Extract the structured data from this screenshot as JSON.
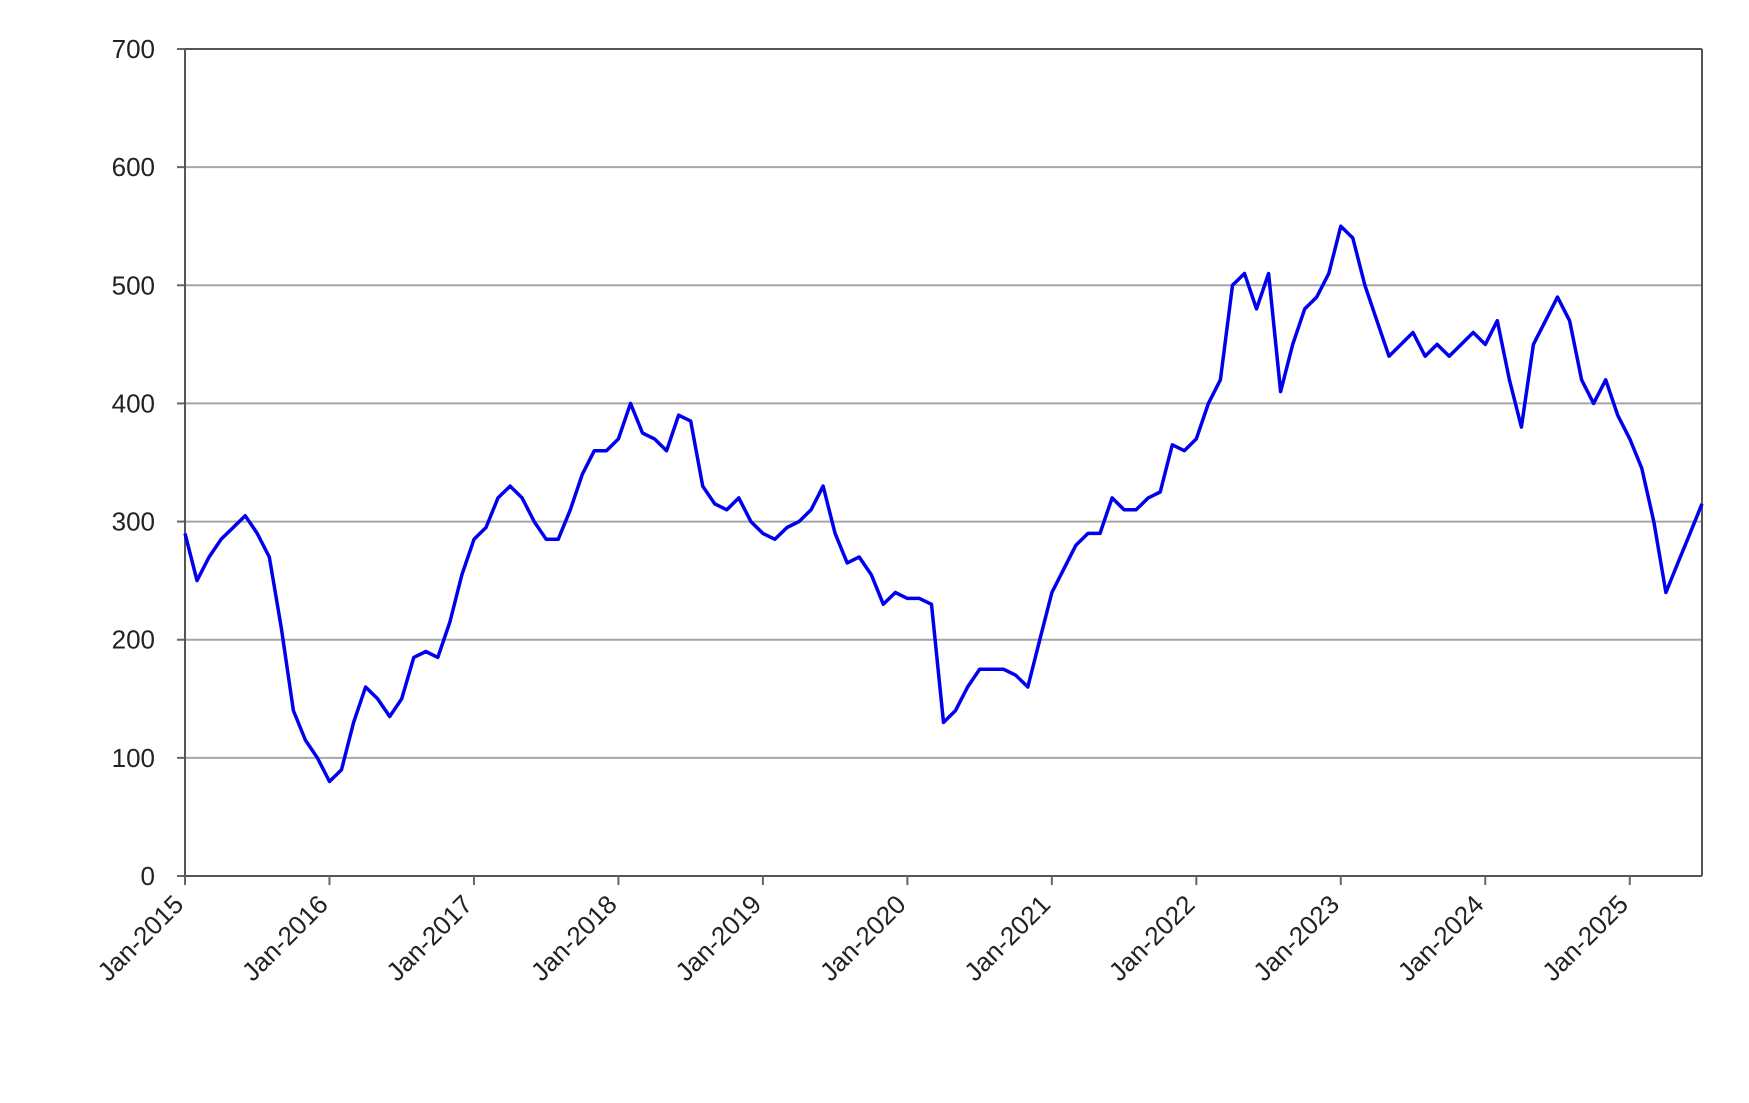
{
  "chart_data": {
    "type": "line",
    "x": [
      "2015-01",
      "2015-02",
      "2015-03",
      "2015-04",
      "2015-05",
      "2015-06",
      "2015-07",
      "2015-08",
      "2015-09",
      "2015-10",
      "2015-11",
      "2015-12",
      "2016-01",
      "2016-02",
      "2016-03",
      "2016-04",
      "2016-05",
      "2016-06",
      "2016-07",
      "2016-08",
      "2016-09",
      "2016-10",
      "2016-11",
      "2016-12",
      "2017-01",
      "2017-02",
      "2017-03",
      "2017-04",
      "2017-05",
      "2017-06",
      "2017-07",
      "2017-08",
      "2017-09",
      "2017-10",
      "2017-11",
      "2017-12",
      "2018-01",
      "2018-02",
      "2018-03",
      "2018-04",
      "2018-05",
      "2018-06",
      "2018-07",
      "2018-08",
      "2018-09",
      "2018-10",
      "2018-11",
      "2018-12",
      "2019-01",
      "2019-02",
      "2019-03",
      "2019-04",
      "2019-05",
      "2019-06",
      "2019-07",
      "2019-08",
      "2019-09",
      "2019-10",
      "2019-11",
      "2019-12",
      "2020-01",
      "2020-02",
      "2020-03",
      "2020-04",
      "2020-05",
      "2020-06",
      "2020-07",
      "2020-08",
      "2020-09",
      "2020-10",
      "2020-11",
      "2020-12",
      "2021-01",
      "2021-02",
      "2021-03",
      "2021-04",
      "2021-05",
      "2021-06",
      "2021-07",
      "2021-08",
      "2021-09",
      "2021-10",
      "2021-11",
      "2021-12",
      "2022-01",
      "2022-02",
      "2022-03",
      "2022-04",
      "2022-05",
      "2022-06",
      "2022-07",
      "2022-08",
      "2022-09",
      "2022-10",
      "2022-11",
      "2022-12",
      "2023-01",
      "2023-02",
      "2023-03",
      "2023-04",
      "2023-05",
      "2023-06",
      "2023-07",
      "2023-08",
      "2023-09",
      "2023-10",
      "2023-11",
      "2023-12",
      "2024-01",
      "2024-02",
      "2024-03",
      "2024-04",
      "2024-05",
      "2024-06",
      "2024-07",
      "2024-08",
      "2024-09",
      "2024-10",
      "2024-11",
      "2024-12",
      "2025-01",
      "2025-02",
      "2025-03",
      "2025-04",
      "2025-05",
      "2025-06",
      "2025-07"
    ],
    "series": [
      {
        "color": "#0000ee",
        "values": [
          290,
          250,
          270,
          285,
          295,
          305,
          290,
          270,
          210,
          140,
          115,
          100,
          80,
          90,
          130,
          160,
          150,
          135,
          150,
          185,
          190,
          185,
          215,
          255,
          285,
          295,
          320,
          330,
          320,
          300,
          285,
          285,
          310,
          340,
          360,
          360,
          370,
          400,
          375,
          370,
          360,
          390,
          385,
          330,
          315,
          310,
          320,
          300,
          290,
          285,
          295,
          300,
          310,
          330,
          290,
          265,
          270,
          255,
          230,
          240,
          235,
          235,
          230,
          130,
          140,
          160,
          175,
          175,
          175,
          170,
          160,
          200,
          240,
          260,
          280,
          290,
          290,
          320,
          310,
          310,
          320,
          325,
          365,
          360,
          370,
          400,
          420,
          500,
          510,
          480,
          510,
          410,
          450,
          480,
          490,
          510,
          550,
          540,
          500,
          470,
          440,
          450,
          460,
          440,
          450,
          440,
          450,
          460,
          450,
          470,
          420,
          380,
          450,
          470,
          490,
          470,
          420,
          400,
          420,
          390,
          370,
          345,
          300,
          240,
          265,
          290,
          315
        ]
      }
    ],
    "xlim": [
      "2015-01",
      "2025-07"
    ],
    "xticks": [
      {
        "value": "2015-01",
        "label": "Jan-2015"
      },
      {
        "value": "2016-01",
        "label": "Jan-2016"
      },
      {
        "value": "2017-01",
        "label": "Jan-2017"
      },
      {
        "value": "2018-01",
        "label": "Jan-2018"
      },
      {
        "value": "2019-01",
        "label": "Jan-2019"
      },
      {
        "value": "2020-01",
        "label": "Jan-2020"
      },
      {
        "value": "2021-01",
        "label": "Jan-2021"
      },
      {
        "value": "2022-01",
        "label": "Jan-2022"
      },
      {
        "value": "2023-01",
        "label": "Jan-2023"
      },
      {
        "value": "2024-01",
        "label": "Jan-2024"
      },
      {
        "value": "2025-01",
        "label": "Jan-2025"
      }
    ],
    "ylim": [
      0,
      700
    ],
    "yticks": [
      0,
      100,
      200,
      300,
      400,
      500,
      600,
      700
    ],
    "grid": true
  }
}
